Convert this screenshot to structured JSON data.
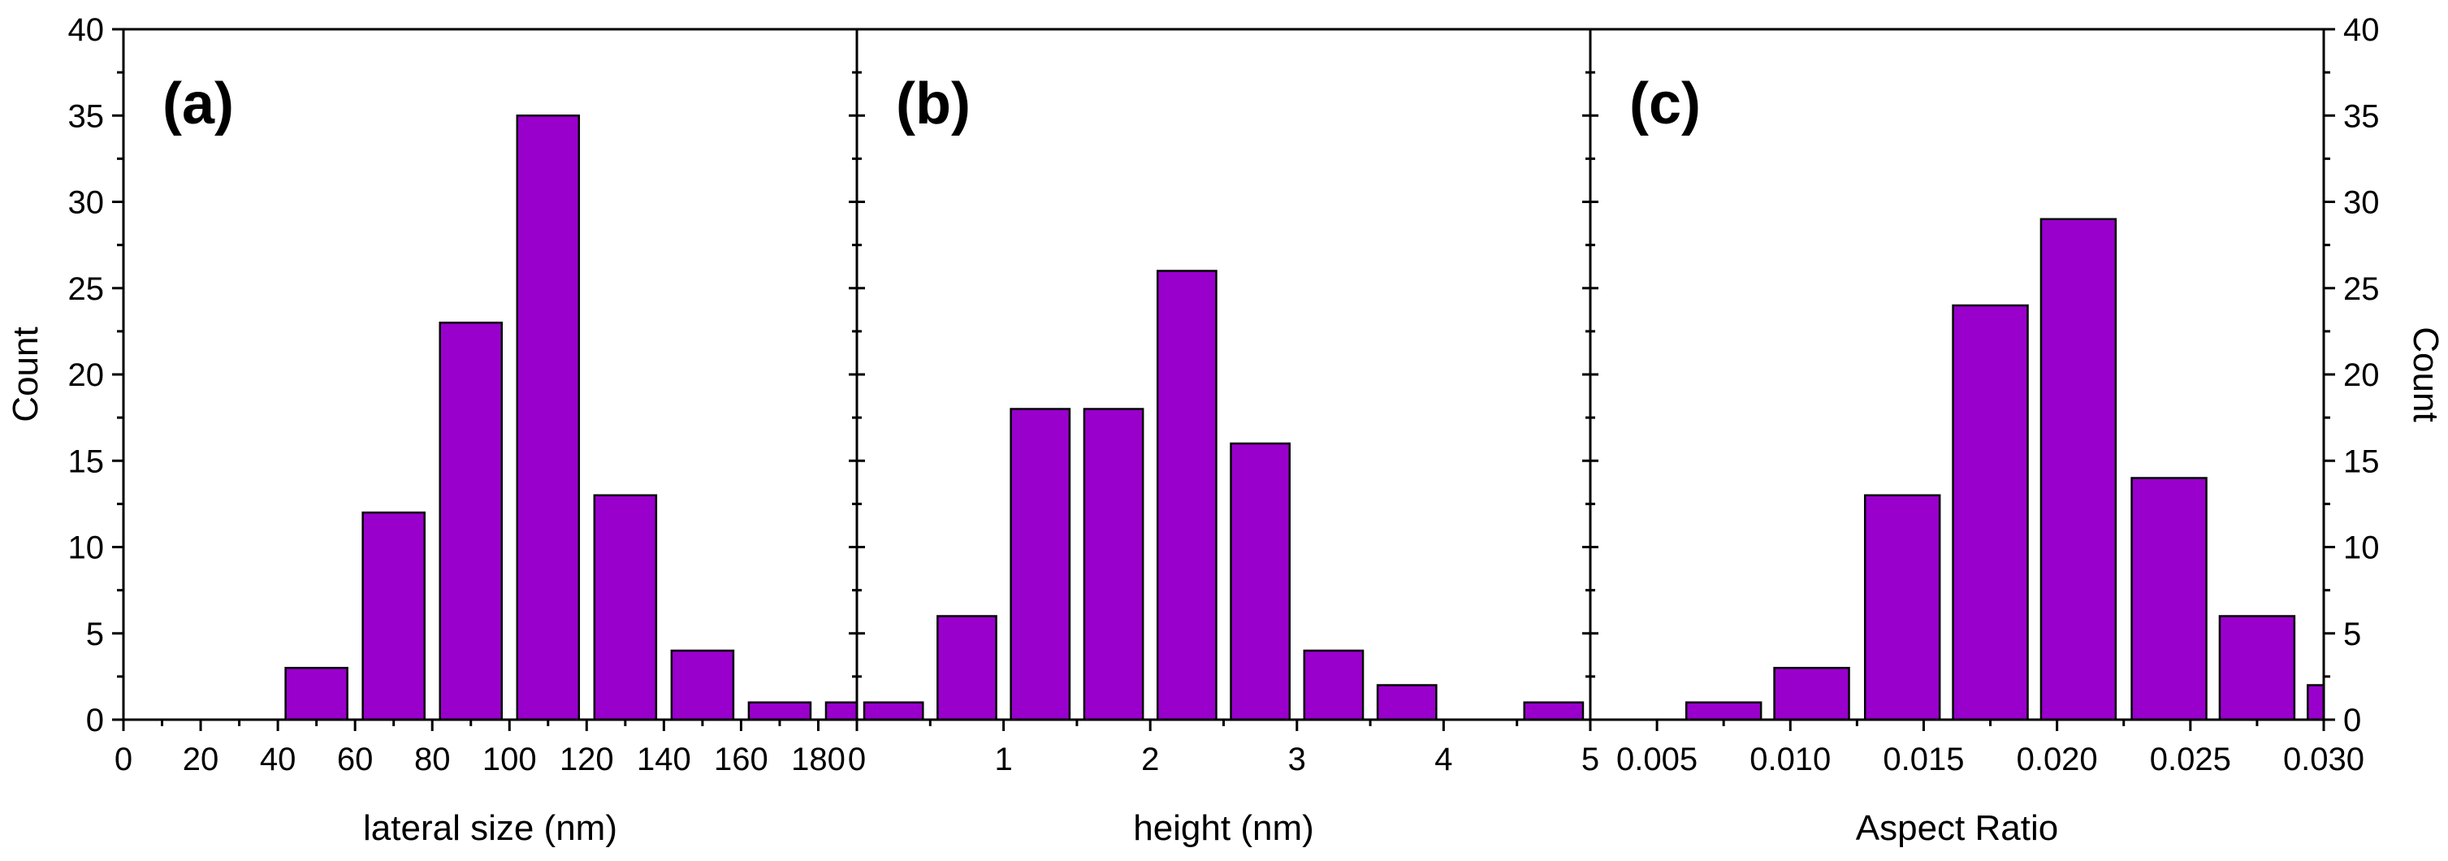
{
  "chart_data": [
    {
      "type": "bar",
      "panel_label": "(a)",
      "xlabel": "lateral size (nm)",
      "ylabel": "Count",
      "xlim": [
        0,
        190
      ],
      "ylim": [
        0,
        40
      ],
      "xticks": [
        0,
        20,
        40,
        60,
        80,
        100,
        120,
        140,
        160,
        180
      ],
      "xtick_labels": [
        "0",
        "20",
        "40",
        "60",
        "80",
        "100",
        "120",
        "140",
        "160",
        "180"
      ],
      "yticks": [
        0,
        5,
        10,
        15,
        20,
        25,
        30,
        35,
        40
      ],
      "ytick_labels": [
        "0",
        "5",
        "10",
        "15",
        "20",
        "25",
        "30",
        "35",
        "40"
      ],
      "bins": [
        {
          "center": 50,
          "width": 16,
          "value": 3
        },
        {
          "center": 70,
          "width": 16,
          "value": 12
        },
        {
          "center": 90,
          "width": 16,
          "value": 23
        },
        {
          "center": 110,
          "width": 16,
          "value": 35
        },
        {
          "center": 130,
          "width": 16,
          "value": 13
        },
        {
          "center": 150,
          "width": 16,
          "value": 4
        },
        {
          "center": 170,
          "width": 16,
          "value": 1
        },
        {
          "center": 190,
          "width": 16,
          "value": 1
        }
      ],
      "color": "#9900cc"
    },
    {
      "type": "bar",
      "panel_label": "(b)",
      "xlabel": "height (nm)",
      "ylabel": "",
      "xlim": [
        0,
        5
      ],
      "ylim": [
        0,
        40
      ],
      "xticks": [
        0,
        1,
        2,
        3,
        4,
        5
      ],
      "xtick_labels": [
        "0",
        "1",
        "2",
        "3",
        "4",
        "5"
      ],
      "yticks": [
        0,
        5,
        10,
        15,
        20,
        25,
        30,
        35,
        40
      ],
      "ytick_labels": [],
      "bins": [
        {
          "center": 0.25,
          "width": 0.4,
          "value": 1
        },
        {
          "center": 0.75,
          "width": 0.4,
          "value": 6
        },
        {
          "center": 1.25,
          "width": 0.4,
          "value": 18
        },
        {
          "center": 1.75,
          "width": 0.4,
          "value": 18
        },
        {
          "center": 2.25,
          "width": 0.4,
          "value": 26
        },
        {
          "center": 2.75,
          "width": 0.4,
          "value": 16
        },
        {
          "center": 3.25,
          "width": 0.4,
          "value": 4
        },
        {
          "center": 3.75,
          "width": 0.4,
          "value": 2
        },
        {
          "center": 4.75,
          "width": 0.4,
          "value": 1
        }
      ],
      "color": "#9900cc"
    },
    {
      "type": "bar",
      "panel_label": "(c)",
      "xlabel": "Aspect Ratio",
      "ylabel": "Count",
      "ylabel_side": "right",
      "xlim": [
        0.0025,
        0.03
      ],
      "ylim": [
        0,
        40
      ],
      "xticks": [
        0.005,
        0.01,
        0.015,
        0.02,
        0.025,
        0.03
      ],
      "xtick_labels": [
        "0.005",
        "0.010",
        "0.015",
        "0.020",
        "0.025",
        "0.030"
      ],
      "yticks": [
        0,
        5,
        10,
        15,
        20,
        25,
        30,
        35,
        40
      ],
      "ytick_labels": [
        "0",
        "5",
        "10",
        "15",
        "20",
        "25",
        "30",
        "35",
        "40"
      ],
      "bins": [
        {
          "center": 0.0075,
          "width": 0.0028,
          "value": 1
        },
        {
          "center": 0.0108,
          "width": 0.0028,
          "value": 3
        },
        {
          "center": 0.0142,
          "width": 0.0028,
          "value": 13
        },
        {
          "center": 0.0175,
          "width": 0.0028,
          "value": 24
        },
        {
          "center": 0.0208,
          "width": 0.0028,
          "value": 29
        },
        {
          "center": 0.0242,
          "width": 0.0028,
          "value": 14
        },
        {
          "center": 0.0275,
          "width": 0.0028,
          "value": 6
        },
        {
          "center": 0.0308,
          "width": 0.0028,
          "value": 2
        }
      ],
      "color": "#9900cc"
    }
  ]
}
